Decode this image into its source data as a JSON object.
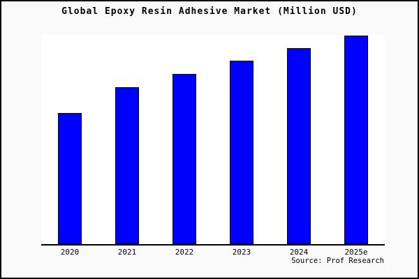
{
  "window": {
    "background_color": "#fafafa",
    "frame_border_color": "#000000",
    "plot_background_color": "#ffffff",
    "axis_color": "#000000",
    "text_color": "#000000"
  },
  "chart_data": {
    "type": "bar",
    "title": "Global Epoxy Resin Adhesive Market (Million USD)",
    "categories": [
      "2020",
      "2021",
      "2022",
      "2023",
      "2024",
      "2025e"
    ],
    "values": [
      189,
      226,
      245,
      264,
      282,
      300
    ],
    "value_note": "y-axis has no tick labels; values are relative heights read from pixels",
    "xlabel": "",
    "ylabel": "",
    "ylim": [
      0,
      301
    ],
    "grid": false,
    "legend": false,
    "y_axis_ticks_visible": false,
    "bar_color": "#0000ff",
    "bar_border_color": "#000000",
    "source": "Source: Prof Research"
  }
}
